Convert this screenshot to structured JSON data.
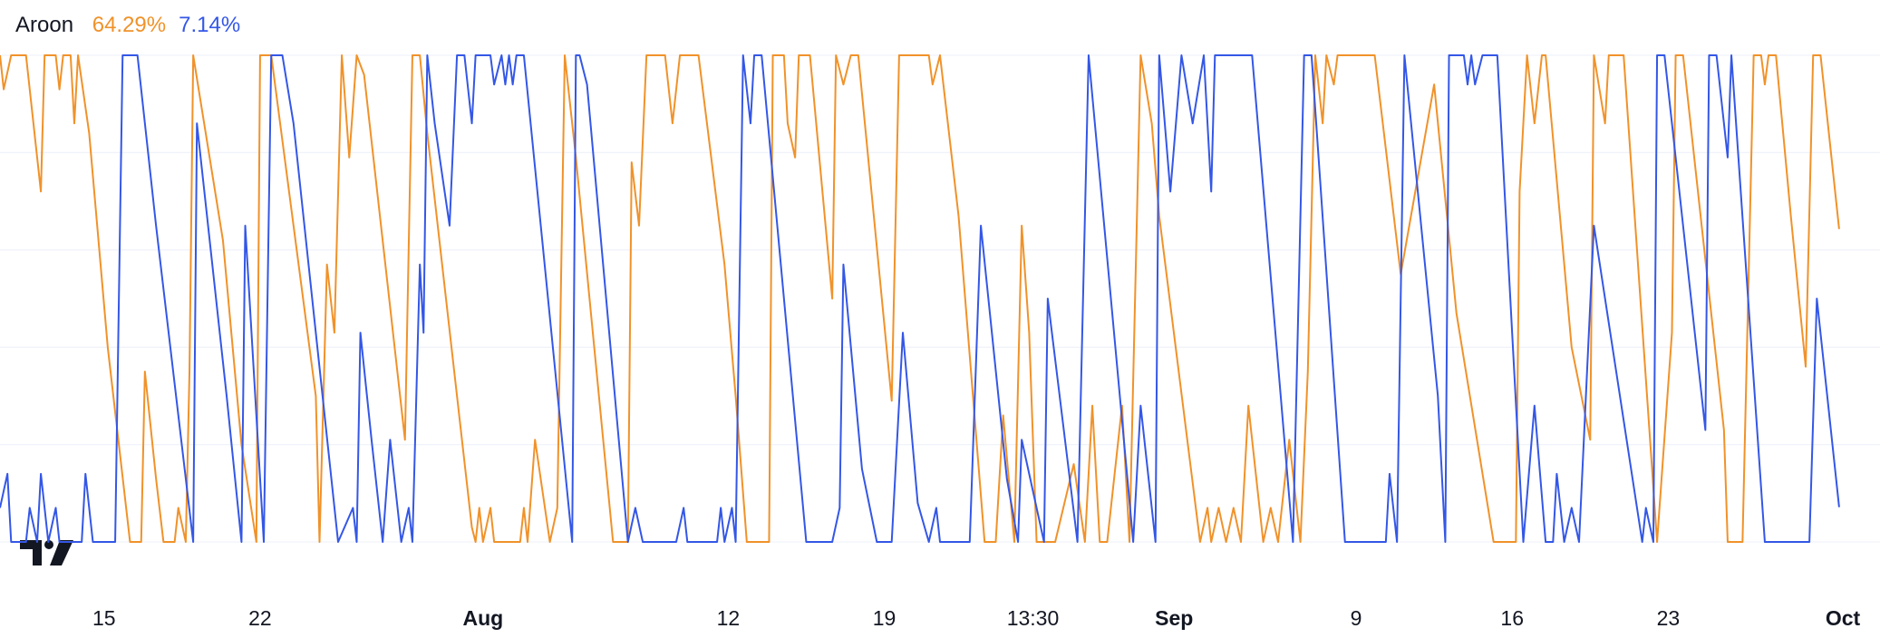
{
  "chart_data": {
    "type": "line",
    "title": "Aroon",
    "xlim": [
      0,
      506
    ],
    "ylim": [
      0,
      100
    ],
    "grid": true,
    "ygrid": [
      0,
      20,
      40,
      60,
      80,
      100
    ],
    "xticks": [
      {
        "value": 28,
        "label": "15"
      },
      {
        "value": 70,
        "label": "22"
      },
      {
        "value": 130,
        "label": "Aug",
        "bold": true
      },
      {
        "value": 196,
        "label": "12"
      },
      {
        "value": 238,
        "label": "19"
      },
      {
        "value": 278,
        "label": "13:30"
      },
      {
        "value": 316,
        "label": "Sep",
        "bold": true
      },
      {
        "value": 365,
        "label": "9"
      },
      {
        "value": 407,
        "label": "16"
      },
      {
        "value": 449,
        "label": "23"
      },
      {
        "value": 496,
        "label": "Oct",
        "bold": true
      }
    ],
    "series": [
      {
        "color": "#f0922a",
        "current_label": "64.29%",
        "x": [
          0,
          1,
          3,
          7,
          11,
          12,
          15,
          16,
          17,
          19,
          20,
          21,
          24,
          29,
          35,
          38,
          39,
          42,
          44,
          47,
          48,
          50,
          51,
          52,
          60,
          65,
          69,
          70,
          73,
          85,
          86,
          88,
          90,
          92,
          94,
          96,
          98,
          109,
          111,
          113,
          115,
          127,
          128,
          129,
          130,
          132,
          133,
          140,
          141,
          142,
          144,
          148,
          150,
          152,
          155,
          165,
          169,
          170,
          172,
          174,
          179,
          181,
          183,
          188,
          195,
          198,
          201,
          207,
          208,
          211,
          212,
          214,
          215,
          218,
          224,
          225,
          227,
          229,
          231,
          240,
          242,
          250,
          251,
          253,
          258,
          265,
          268,
          270,
          273,
          275,
          277,
          279,
          284,
          289,
          292,
          294,
          296,
          298,
          302,
          304,
          307,
          310,
          312,
          323,
          325,
          326,
          328,
          330,
          332,
          334,
          336,
          340,
          342,
          344,
          347,
          350,
          352,
          354,
          356,
          357,
          359,
          360,
          370,
          377,
          386,
          392,
          402,
          408,
          409,
          411,
          413,
          415,
          416,
          423,
          428,
          429,
          432,
          433,
          437,
          446,
          450,
          451,
          453,
          464,
          465,
          469,
          472,
          474,
          475,
          476,
          478,
          482,
          486,
          488,
          490,
          495
        ],
        "values": [
          100,
          93,
          100,
          100,
          72,
          100,
          100,
          93,
          100,
          100,
          86,
          100,
          84,
          40,
          0,
          0,
          35,
          13,
          0,
          0,
          7,
          0,
          35,
          100,
          62,
          20,
          0,
          100,
          100,
          30,
          0,
          57,
          43,
          100,
          79,
          100,
          96,
          21,
          100,
          100,
          84,
          3,
          0,
          7,
          0,
          7,
          0,
          0,
          7,
          0,
          21,
          0,
          7,
          100,
          79,
          0,
          0,
          78,
          65,
          100,
          100,
          86,
          100,
          100,
          57,
          30,
          0,
          0,
          100,
          100,
          86,
          79,
          100,
          100,
          50,
          100,
          94,
          100,
          100,
          29,
          100,
          100,
          94,
          100,
          67,
          0,
          0,
          26,
          0,
          65,
          43,
          0,
          0,
          16,
          0,
          28,
          0,
          0,
          28,
          0,
          100,
          86,
          67,
          0,
          7,
          0,
          7,
          0,
          7,
          0,
          28,
          0,
          7,
          0,
          21,
          0,
          35,
          100,
          86,
          100,
          94,
          100,
          100,
          55,
          94,
          47,
          0,
          0,
          72,
          100,
          86,
          100,
          100,
          40,
          21,
          100,
          86,
          100,
          100,
          0,
          43,
          100,
          100,
          23,
          0,
          0,
          100,
          100,
          94,
          100,
          100,
          67,
          36,
          100,
          100,
          64.29
        ]
      },
      {
        "color": "#3457e6",
        "current_label": "7.14%",
        "x": [
          0,
          2,
          3,
          7,
          8,
          10,
          11,
          13,
          15,
          16,
          22,
          23,
          25,
          31,
          33,
          37,
          42,
          52,
          53,
          61,
          65,
          66,
          71,
          73,
          76,
          79,
          91,
          95,
          96,
          97,
          100,
          103,
          105,
          108,
          110,
          111,
          113,
          114,
          115,
          117,
          121,
          123,
          125,
          127,
          128,
          132,
          133,
          135,
          136,
          137,
          138,
          139,
          141,
          154,
          155,
          156,
          158,
          169,
          171,
          173,
          182,
          184,
          185,
          193,
          194,
          195,
          197,
          198,
          200,
          202,
          203,
          205,
          217,
          224,
          226,
          227,
          232,
          236,
          240,
          243,
          247,
          250,
          252,
          253,
          261,
          264,
          271,
          274,
          275,
          281,
          282,
          290,
          293,
          305,
          307,
          311,
          312,
          315,
          318,
          321,
          324,
          326,
          327,
          332,
          337,
          348,
          351,
          353,
          362,
          373,
          374,
          376,
          378,
          387,
          389,
          390,
          394,
          395,
          396,
          397,
          399,
          403,
          410,
          413,
          416,
          418,
          419,
          421,
          423,
          425,
          429,
          442,
          443,
          445,
          446,
          448,
          459,
          460,
          462,
          465,
          466,
          475,
          482,
          487,
          489,
          495
        ],
        "values": [
          7,
          14,
          0,
          0,
          7,
          0,
          14,
          0,
          7,
          0,
          0,
          14,
          0,
          0,
          100,
          100,
          65,
          0,
          86,
          30,
          0,
          65,
          0,
          100,
          100,
          86,
          0,
          7,
          0,
          43,
          21,
          0,
          21,
          0,
          7,
          0,
          57,
          43,
          100,
          86,
          65,
          100,
          100,
          86,
          100,
          100,
          94,
          100,
          94,
          100,
          94,
          100,
          100,
          0,
          100,
          100,
          94,
          0,
          7,
          0,
          0,
          7,
          0,
          0,
          7,
          0,
          7,
          0,
          100,
          86,
          100,
          100,
          0,
          0,
          7,
          57,
          15,
          0,
          0,
          43,
          8,
          0,
          7,
          0,
          0,
          65,
          13,
          0,
          21,
          0,
          50,
          0,
          100,
          0,
          28,
          0,
          100,
          72,
          100,
          86,
          100,
          72,
          100,
          100,
          100,
          0,
          100,
          100,
          0,
          0,
          14,
          0,
          100,
          30,
          0,
          100,
          100,
          94,
          100,
          94,
          100,
          100,
          0,
          28,
          0,
          0,
          14,
          0,
          7,
          0,
          65,
          0,
          7,
          0,
          100,
          100,
          23,
          100,
          100,
          79,
          100,
          0,
          0,
          0,
          50,
          7.14
        ]
      }
    ]
  }
}
